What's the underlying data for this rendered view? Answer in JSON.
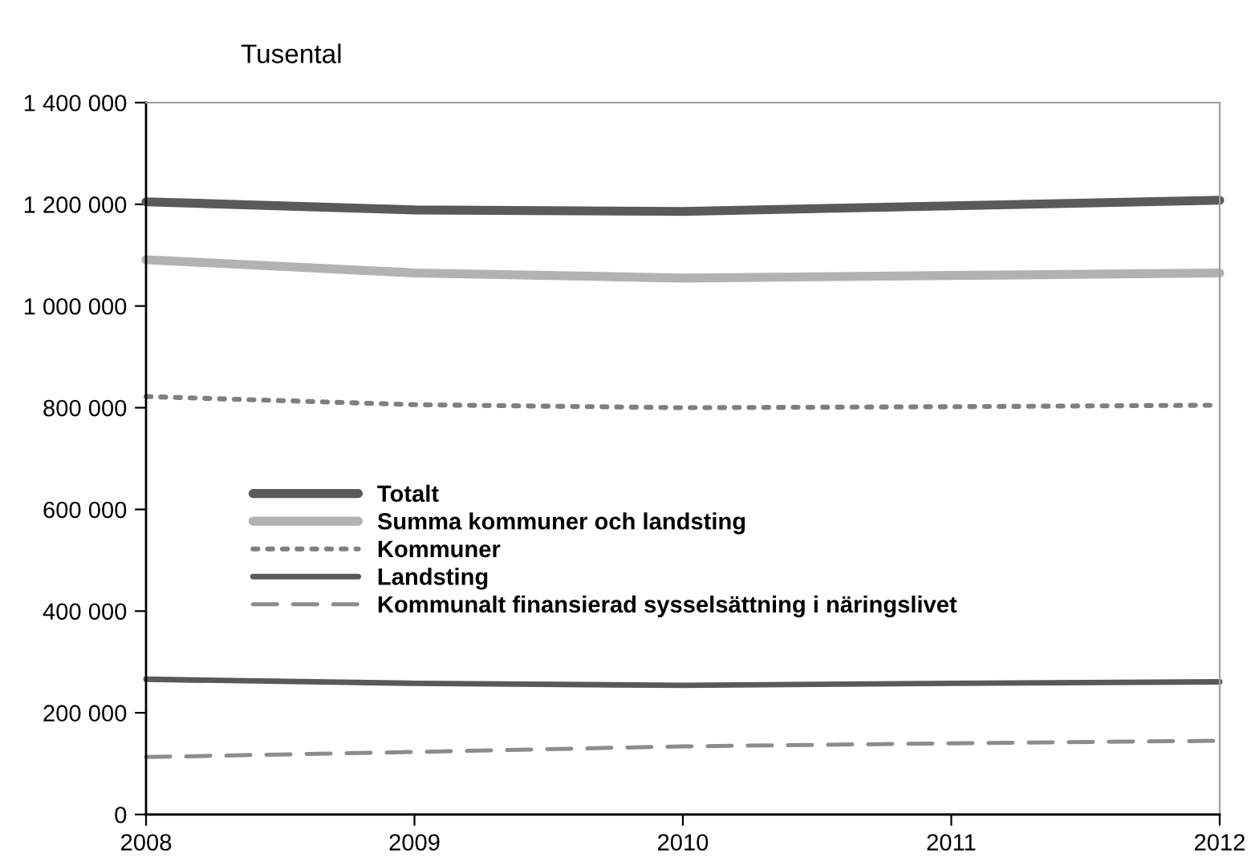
{
  "chart_data": {
    "type": "line",
    "ylabel": "Tusental",
    "x": [
      2008,
      2009,
      2010,
      2011,
      2012
    ],
    "series": [
      {
        "name": "Totalt",
        "color": "#5a5a5a",
        "values": [
          1205000,
          1189000,
          1186000,
          1197000,
          1208000
        ],
        "line_style": "solid"
      },
      {
        "name": "Summa kommuner och landsting",
        "color": "#b2b2b2",
        "values": [
          1091000,
          1065000,
          1055000,
          1060000,
          1065000
        ],
        "line_style": "solid"
      },
      {
        "name": "Kommuner",
        "color": "#7f7f7f",
        "values": [
          822000,
          806000,
          800000,
          802000,
          805000
        ],
        "line_style": "dotted"
      },
      {
        "name": "Landsting",
        "color": "#595959",
        "values": [
          266000,
          258000,
          254000,
          258000,
          261000
        ],
        "line_style": "solid"
      },
      {
        "name": "Kommunalt finansierad sysselsättning i näringslivet",
        "color": "#8c8c8c",
        "values": [
          113000,
          123000,
          134000,
          140000,
          145000
        ],
        "line_style": "dashed"
      }
    ],
    "xlim": [
      2008,
      2012
    ],
    "xticks": [
      2008,
      2009,
      2010,
      2011,
      2012
    ],
    "ylim": [
      0,
      1400000
    ],
    "yticks": [
      0,
      {
        "value": 200000,
        "label": "200 000"
      },
      {
        "value": 400000,
        "label": "400 000"
      },
      {
        "value": 600000,
        "label": "600 000"
      },
      {
        "value": 800000,
        "label": "800 000"
      },
      {
        "value": 1000000,
        "label": "1 000 000"
      },
      {
        "value": 1200000,
        "label": "1 200 000"
      },
      {
        "value": 1400000,
        "label": "1 400 000"
      }
    ],
    "grid": false,
    "legend": "center left",
    "marker": "none"
  }
}
